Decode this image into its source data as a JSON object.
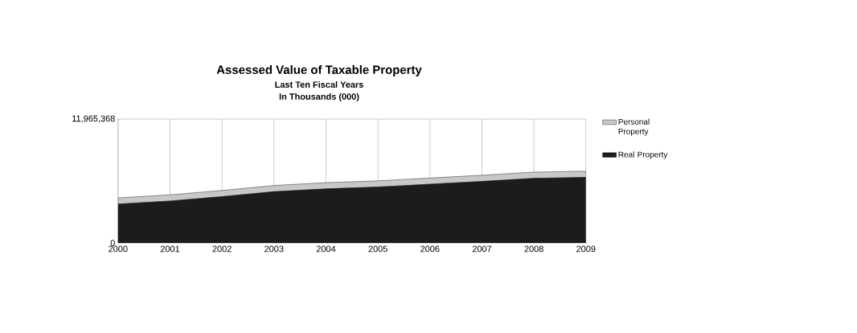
{
  "chart_data": {
    "type": "area",
    "title": "Assessed Value of Taxable Property",
    "subtitle": "Last Ten Fiscal Years",
    "annotations": [
      "In Thousands (000)"
    ],
    "categories": [
      "2000",
      "2001",
      "2002",
      "2003",
      "2004",
      "2005",
      "2006",
      "2007",
      "2008",
      "2009"
    ],
    "stacked": true,
    "series": [
      {
        "name": "Real Property",
        "color": "#1c1c1c",
        "values": [
          3750000,
          4050000,
          4470000,
          4950000,
          5220000,
          5400000,
          5670000,
          5940000,
          6240000,
          6330000
        ]
      },
      {
        "name": "Personal Property",
        "color": "#c8c8c8",
        "values": [
          600000,
          600000,
          600000,
          600000,
          600000,
          600000,
          600000,
          600000,
          600000,
          600000
        ]
      }
    ],
    "ylim": [
      0,
      11965368
    ],
    "yticks": [
      0,
      {
        "value": 11965368,
        "label": "11,965,368"
      }
    ],
    "grid": true,
    "legend": "right"
  }
}
